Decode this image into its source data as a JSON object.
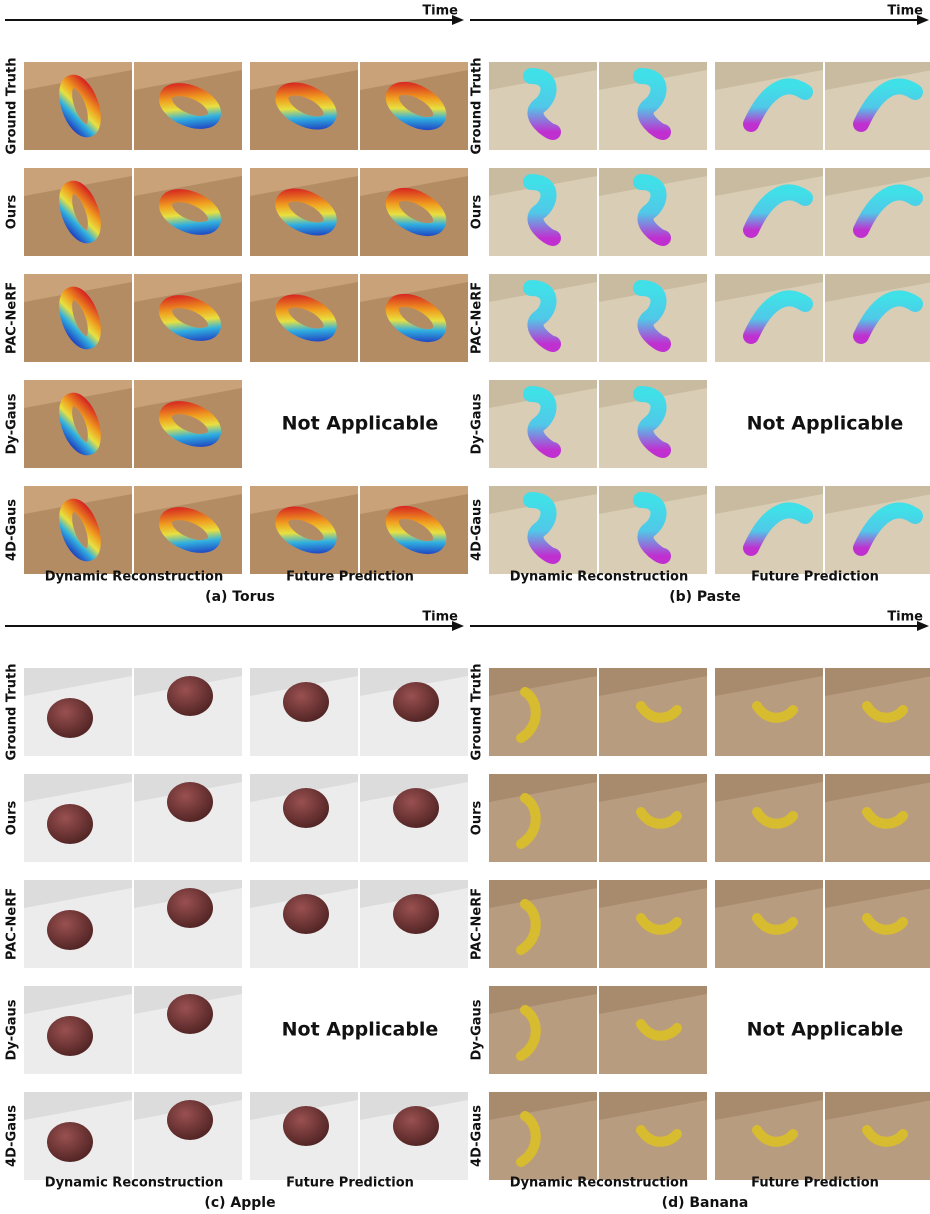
{
  "panels": [
    {
      "caption": "(a) Torus",
      "time_label": "Time",
      "rows": [
        "Ground Truth",
        "Ours",
        "PAC-NeRF",
        "Dy-Gaus",
        "4D-Gaus"
      ],
      "columns": [
        "Dynamic Reconstruction",
        "Future Prediction"
      ],
      "not_applicable": "Not Applicable"
    },
    {
      "caption": "(b) Paste",
      "time_label": "Time",
      "rows": [
        "Ground Truth",
        "Ours",
        "PAC-NeRF",
        "Dy-Gaus",
        "4D-Gaus"
      ],
      "columns": [
        "Dynamic Reconstruction",
        "Future Prediction"
      ],
      "not_applicable": "Not Applicable"
    },
    {
      "caption": "(c) Apple",
      "time_label": "Time",
      "rows": [
        "Ground Truth",
        "Ours",
        "PAC-NeRF",
        "Dy-Gaus",
        "4D-Gaus"
      ],
      "columns": [
        "Dynamic Reconstruction",
        "Future Prediction"
      ],
      "not_applicable": "Not Applicable"
    },
    {
      "caption": "(d) Banana",
      "time_label": "Time",
      "rows": [
        "Ground Truth",
        "Ours",
        "PAC-NeRF",
        "Dy-Gaus",
        "4D-Gaus"
      ],
      "columns": [
        "Dynamic Reconstruction",
        "Future Prediction"
      ],
      "not_applicable": "Not Applicable"
    }
  ]
}
